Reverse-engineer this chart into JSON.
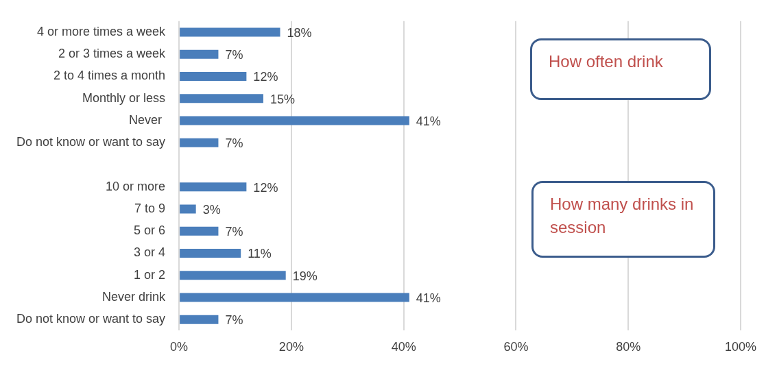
{
  "chart_data": {
    "type": "bar",
    "orientation": "horizontal",
    "categories": [
      "4 or more times a week",
      "2 or 3 times a week",
      "2 to 4 times a month",
      "Monthly or less",
      "Never ",
      "Do not know or want to say",
      null,
      "10 or more",
      "7 to 9",
      "5 or 6",
      "3 or 4",
      "1 or 2",
      "Never drink",
      "Do not know or want to say"
    ],
    "values": [
      18,
      7,
      12,
      15,
      41,
      7,
      null,
      12,
      3,
      7,
      11,
      19,
      41,
      7
    ],
    "value_labels": [
      "18%",
      "7%",
      "12%",
      "15%",
      "41%",
      "7%",
      null,
      "12%",
      "3%",
      "7%",
      "11%",
      "19%",
      "41%",
      "7%"
    ],
    "color": "#4a7ebb",
    "xlim": [
      0,
      100
    ],
    "xticks": [
      {
        "value": 0,
        "label": "0%"
      },
      {
        "value": 20,
        "label": "20%"
      },
      {
        "value": 40,
        "label": "40%"
      },
      {
        "value": 60,
        "label": "60%"
      },
      {
        "value": 80,
        "label": "80%"
      },
      {
        "value": 100,
        "label": "100%"
      }
    ],
    "grid": "x",
    "legend": false,
    "annotations": [
      "How often drink",
      "How many drinks in session"
    ]
  }
}
